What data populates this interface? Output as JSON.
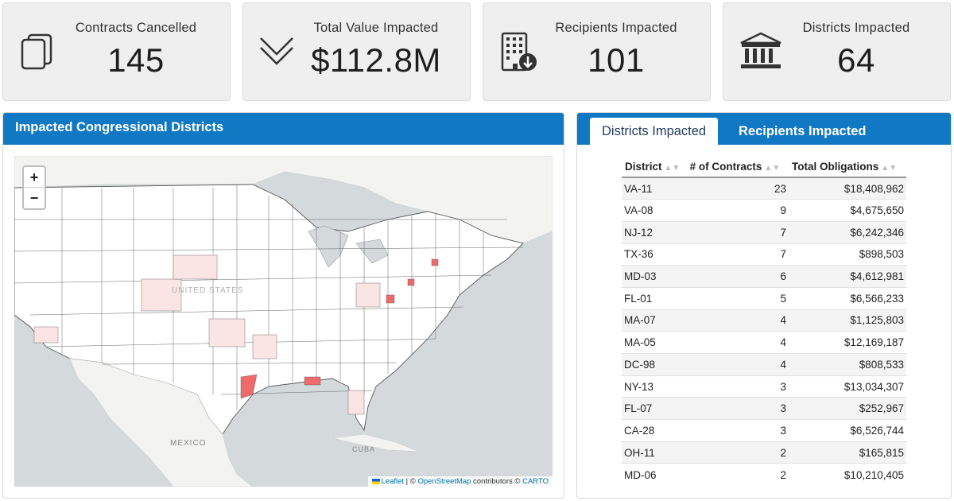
{
  "stats": [
    {
      "label": "Contracts Cancelled",
      "value": "145",
      "icon": "documents-icon"
    },
    {
      "label": "Total Value Impacted",
      "value": "$112.8M",
      "icon": "double-chevron-down-icon"
    },
    {
      "label": "Recipients Impacted",
      "value": "101",
      "icon": "building-icon"
    },
    {
      "label": "Districts Impacted",
      "value": "64",
      "icon": "government-building-icon"
    }
  ],
  "map": {
    "title": "Impacted Congressional Districts",
    "zoom_in": "+",
    "zoom_out": "−",
    "labels": {
      "country": "UNITED STATES",
      "mexico": "MEXICO",
      "cuba": "CUBA"
    },
    "attribution": {
      "leaflet": "Leaflet",
      "sep": " | © ",
      "osm": "OpenStreetMap",
      "contrib": " contributors © ",
      "carto": "CARTO"
    }
  },
  "tabs": {
    "districts": "Districts Impacted",
    "recipients": "Recipients Impacted"
  },
  "table": {
    "headers": [
      "District",
      "# of Contracts",
      "Total Obligations"
    ],
    "rows": [
      [
        "VA-11",
        "23",
        "$18,408,962"
      ],
      [
        "VA-08",
        "9",
        "$4,675,650"
      ],
      [
        "NJ-12",
        "7",
        "$6,242,346"
      ],
      [
        "TX-36",
        "7",
        "$898,503"
      ],
      [
        "MD-03",
        "6",
        "$4,612,981"
      ],
      [
        "FL-01",
        "5",
        "$6,566,233"
      ],
      [
        "MA-07",
        "4",
        "$1,125,803"
      ],
      [
        "MA-05",
        "4",
        "$12,169,187"
      ],
      [
        "DC-98",
        "4",
        "$808,533"
      ],
      [
        "NY-13",
        "3",
        "$13,034,307"
      ],
      [
        "FL-07",
        "3",
        "$252,967"
      ],
      [
        "CA-28",
        "3",
        "$6,526,744"
      ],
      [
        "OH-11",
        "2",
        "$165,815"
      ],
      [
        "MD-06",
        "2",
        "$10,210,405"
      ]
    ]
  },
  "colors": {
    "header_blue": "#1178c4",
    "card_bg": "#efefef",
    "district_fill_light": "#fbe4e4",
    "district_fill_strong": "#ef6b6b",
    "water": "#d4dadc",
    "land": "#f3f3f1"
  }
}
